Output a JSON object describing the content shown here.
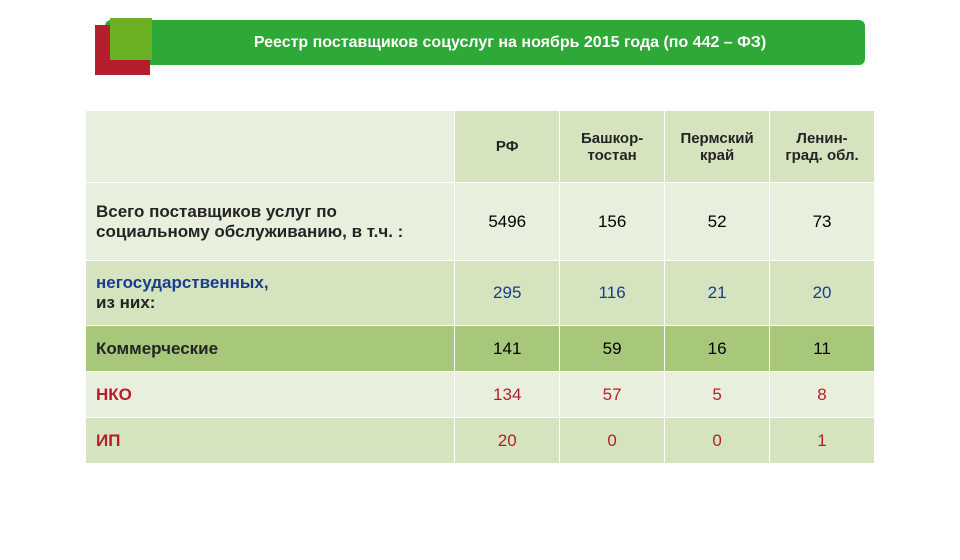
{
  "header": {
    "title": "Реестр поставщиков соцуслуг на ноябрь 2015 года (по 442 – ФЗ)"
  },
  "table": {
    "columns": [
      "РФ",
      "Башкор-тостан",
      "Пермский край",
      "Ленин-град. обл."
    ],
    "rows": {
      "total": {
        "label": "Всего поставщиков услуг по социальному обслуживанию, в т.ч. :",
        "values": [
          "5496",
          "156",
          "52",
          "73"
        ]
      },
      "nongov": {
        "label_l1": "негосударственных,",
        "label_l2": "из них:",
        "values": [
          "295",
          "116",
          "21",
          "20"
        ]
      },
      "commercial": {
        "label": "Коммерческие",
        "values": [
          "141",
          "59",
          "16",
          "11"
        ]
      },
      "nko": {
        "label": "НКО",
        "values": [
          "134",
          "57",
          "5",
          "8"
        ]
      },
      "ip": {
        "label": "ИП",
        "values": [
          "20",
          "0",
          "0",
          "1"
        ]
      }
    }
  },
  "colors": {
    "title_bg": "#2ea836",
    "accent_red": "#b51e2d",
    "accent_green": "#6ab023",
    "row_light": "#e9efdd",
    "row_med": "#d5e3bf",
    "row_dark": "#a7c77a",
    "text_blue": "#1a3c8c",
    "text_red": "#b51e2d"
  }
}
